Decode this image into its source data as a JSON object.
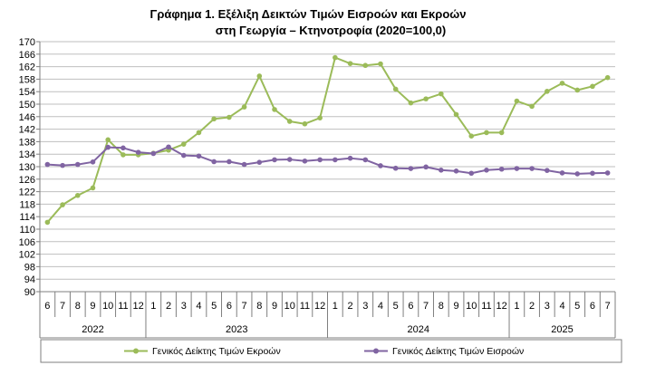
{
  "chart_data": {
    "type": "line",
    "title": [
      "Γράφημα 1. Εξέλιξη Δεικτών Τιμών Εισροών και Εκροών",
      "στη Γεωργία – Κτηνοτροφία (2020=100,0)"
    ],
    "xlabel": "",
    "ylabel": "",
    "ylim": [
      90,
      170
    ],
    "ytick_step": 4,
    "month_labels": [
      "6",
      "7",
      "8",
      "9",
      "10",
      "11",
      "12",
      "1",
      "2",
      "3",
      "4",
      "5",
      "6",
      "7",
      "8",
      "9",
      "10",
      "11",
      "12",
      "1",
      "2",
      "3",
      "4",
      "5",
      "6",
      "7",
      "8",
      "9",
      "10",
      "11",
      "12",
      "1",
      "2",
      "3",
      "4",
      "5",
      "6",
      "7"
    ],
    "year_groups": [
      {
        "label": "2022",
        "start": 0,
        "end": 6
      },
      {
        "label": "2023",
        "start": 7,
        "end": 18
      },
      {
        "label": "2024",
        "start": 19,
        "end": 30
      },
      {
        "label": "2025",
        "start": 31,
        "end": 37
      }
    ],
    "grid": true,
    "legend_position": "bottom",
    "series": [
      {
        "name": "Γενικός Δείκτης Τιμών Εκροών",
        "color": "#9bbb59",
        "values": [
          112.2,
          117.8,
          120.8,
          123.2,
          138.6,
          133.8,
          133.8,
          134.3,
          135.3,
          137.2,
          140.9,
          145.3,
          145.8,
          149.1,
          159.0,
          148.3,
          144.5,
          143.7,
          145.6,
          164.9,
          163.0,
          162.4,
          162.9,
          154.8,
          150.4,
          151.7,
          153.3,
          146.7,
          139.8,
          140.9,
          140.9,
          151.0,
          149.3,
          154.1,
          156.7,
          154.5,
          155.7,
          158.5
        ]
      },
      {
        "name": "Γενικός Δείκτης Τιμών Εισροών",
        "color": "#8064a2",
        "values": [
          130.7,
          130.4,
          130.7,
          131.5,
          136.2,
          136.0,
          134.6,
          134.2,
          136.3,
          133.6,
          133.4,
          131.6,
          131.6,
          130.7,
          131.4,
          132.2,
          132.3,
          131.8,
          132.2,
          132.2,
          132.7,
          132.2,
          130.3,
          129.5,
          129.4,
          129.9,
          128.9,
          128.6,
          127.9,
          128.9,
          129.2,
          129.4,
          129.4,
          128.8,
          128.0,
          127.7,
          127.9,
          128.0
        ]
      }
    ]
  }
}
